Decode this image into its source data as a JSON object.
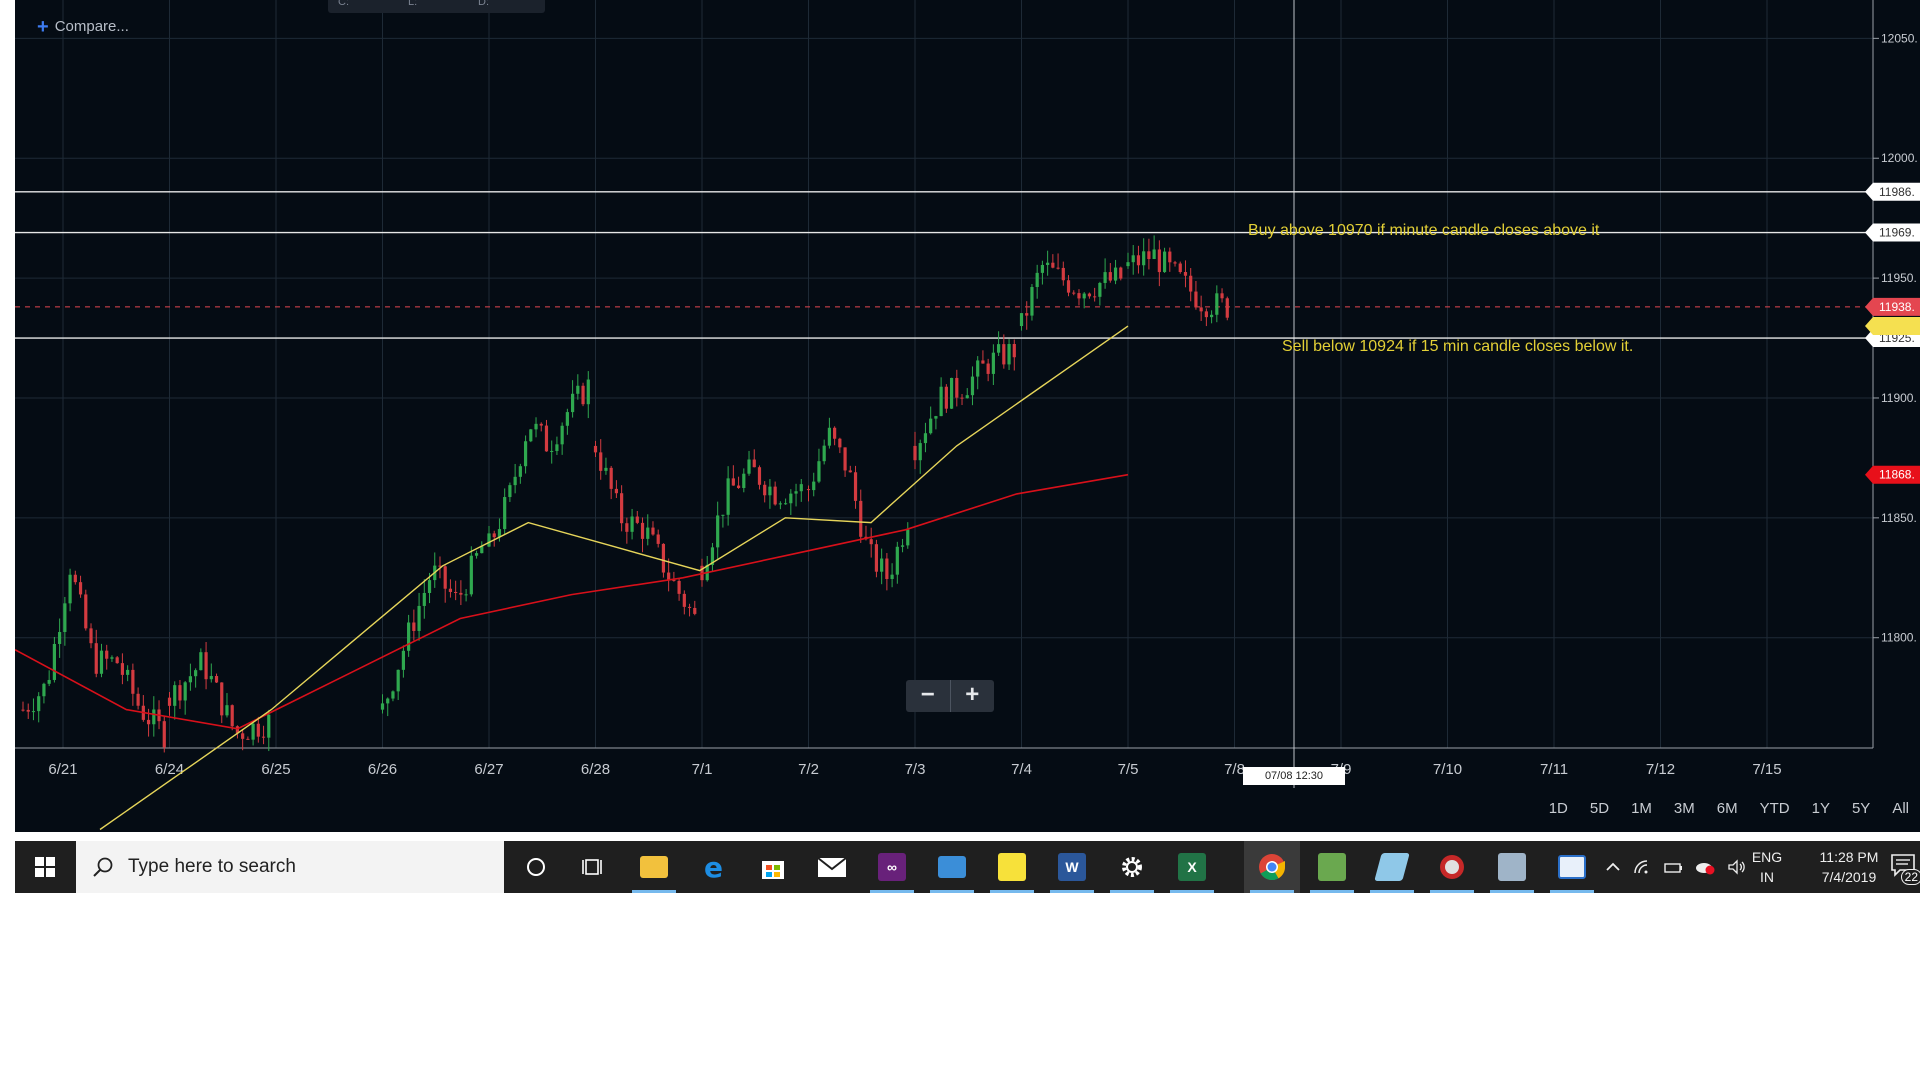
{
  "toolbar": {
    "compare_label": "Compare...",
    "ohlc_labels": [
      "C:",
      "L:",
      "D:"
    ]
  },
  "annotations": {
    "buy_text": "Buy above 10970 if minute  candle closes above it",
    "sell_text": "Sell below 10924 if 15 min candle closes below it."
  },
  "crosshair": {
    "date_label": "07/08 12:30"
  },
  "range_buttons": [
    "1D",
    "5D",
    "1M",
    "3M",
    "6M",
    "YTD",
    "1Y",
    "5Y",
    "All"
  ],
  "zoom": {
    "minus": "−",
    "plus": "+"
  },
  "colors": {
    "background": "#050c14",
    "up": "#2fa84f",
    "down": "#d33b40",
    "ma_fast": "#e6d55a",
    "ma_slow": "#d8101a",
    "hline": "#e8e8e8",
    "price_line": "#e44650"
  },
  "chart_data": {
    "type": "candlestick",
    "x_tick_labels": [
      "6/21",
      "6/24",
      "6/25",
      "6/26",
      "6/27",
      "6/28",
      "7/1",
      "7/2",
      "7/3",
      "7/4",
      "7/5",
      "7/8",
      "7/9",
      "7/10",
      "7/11",
      "7/12",
      "7/15"
    ],
    "y_tick_labels": [
      "12050.",
      "12000.",
      "11950.",
      "11900.",
      "11850.",
      "11800."
    ],
    "y_ticks": [
      12050,
      12000,
      11950,
      11900,
      11850,
      11800
    ],
    "ylim": [
      11754,
      12066
    ],
    "horizontal_lines": [
      {
        "value": 11986,
        "label": "11986."
      },
      {
        "value": 11969,
        "label": "11969."
      },
      {
        "value": 11925,
        "label": "11925."
      }
    ],
    "current_price": {
      "value": 11938,
      "label": "11938."
    },
    "ma_slow_last": {
      "value": 11868,
      "label": "11868."
    },
    "ma_fast_last": {
      "value": 11930
    },
    "sessions": [
      {
        "day": "6/21",
        "open": 11770,
        "close": 11770,
        "points": [
          11780,
          11830,
          11790,
          11790,
          11770,
          11760
        ]
      },
      {
        "day": "6/24",
        "open": 11775,
        "close": 11765,
        "points": [
          11790,
          11760,
          11765
        ]
      },
      {
        "day": "6/26",
        "open": 11770,
        "close": 11838,
        "points": [
          11800,
          11828,
          11815,
          11838
        ]
      },
      {
        "day": "6/27",
        "open": 11838,
        "close": 11905,
        "points": [
          11858,
          11890,
          11880,
          11895,
          11905
        ]
      },
      {
        "day": "6/28",
        "open": 11880,
        "close": 11808,
        "points": [
          11850,
          11845,
          11825,
          11808
        ]
      },
      {
        "day": "7/1",
        "open": 11830,
        "close": 11862,
        "points": [
          11860,
          11870,
          11860,
          11862
        ]
      },
      {
        "day": "7/2",
        "open": 11862,
        "close": 11850,
        "points": [
          11885,
          11870,
          11835,
          11825,
          11850
        ]
      },
      {
        "day": "7/3",
        "open": 11880,
        "close": 11915,
        "points": [
          11900,
          11905,
          11915,
          11920
        ]
      },
      {
        "day": "7/4",
        "open": 11930,
        "close": 11950,
        "points": [
          11955,
          11950,
          11945,
          11948,
          11950
        ]
      },
      {
        "day": "7/5",
        "open": 11955,
        "close": 11938,
        "points": [
          11960,
          11950,
          11940,
          11938
        ]
      }
    ],
    "ma_fast": [
      11720,
      11745,
      11770,
      11800,
      11830,
      11848,
      11838,
      11828,
      11850,
      11848,
      11880,
      11905,
      11930
    ],
    "ma_slow": [
      11795,
      11770,
      11762,
      11785,
      11808,
      11818,
      11825,
      11835,
      11845,
      11860,
      11868
    ]
  },
  "taskbar": {
    "search_placeholder": "Type here to search",
    "lang_line1": "ENG",
    "lang_line2": "IN",
    "time": "11:28 PM",
    "date": "7/4/2019",
    "notification_count": "22"
  }
}
